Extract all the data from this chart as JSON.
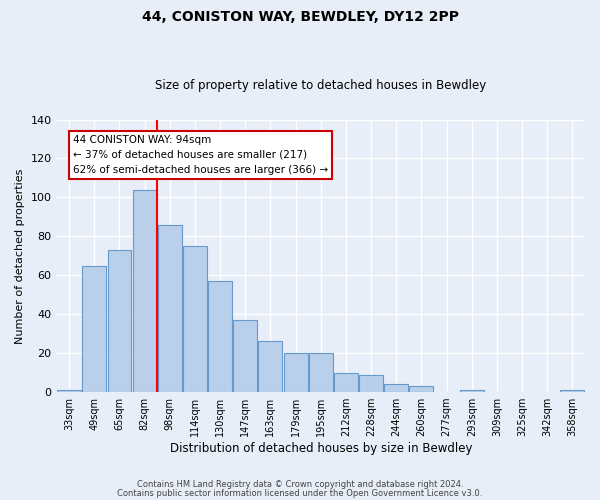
{
  "title": "44, CONISTON WAY, BEWDLEY, DY12 2PP",
  "subtitle": "Size of property relative to detached houses in Bewdley",
  "xlabel": "Distribution of detached houses by size in Bewdley",
  "ylabel": "Number of detached properties",
  "categories": [
    "33sqm",
    "49sqm",
    "65sqm",
    "82sqm",
    "98sqm",
    "114sqm",
    "130sqm",
    "147sqm",
    "163sqm",
    "179sqm",
    "195sqm",
    "212sqm",
    "228sqm",
    "244sqm",
    "260sqm",
    "277sqm",
    "293sqm",
    "309sqm",
    "325sqm",
    "342sqm",
    "358sqm"
  ],
  "values": [
    1,
    65,
    73,
    104,
    86,
    75,
    57,
    37,
    26,
    20,
    20,
    10,
    9,
    4,
    3,
    0,
    1,
    0,
    0,
    0,
    1
  ],
  "bar_color": "#bad0ea",
  "bar_edge_color": "#6699cc",
  "red_line_index": 4,
  "annotation_text": "44 CONISTON WAY: 94sqm\n← 37% of detached houses are smaller (217)\n62% of semi-detached houses are larger (366) →",
  "annotation_box_color": "#ffffff",
  "annotation_box_edge": "#cc0000",
  "ylim": [
    0,
    140
  ],
  "yticks": [
    0,
    20,
    40,
    60,
    80,
    100,
    120,
    140
  ],
  "bg_color": "#e8eef8",
  "fig_bg_color": "#e8eef8",
  "grid_color": "#ffffff",
  "footer1": "Contains HM Land Registry data © Crown copyright and database right 2024.",
  "footer2": "Contains public sector information licensed under the Open Government Licence v3.0."
}
